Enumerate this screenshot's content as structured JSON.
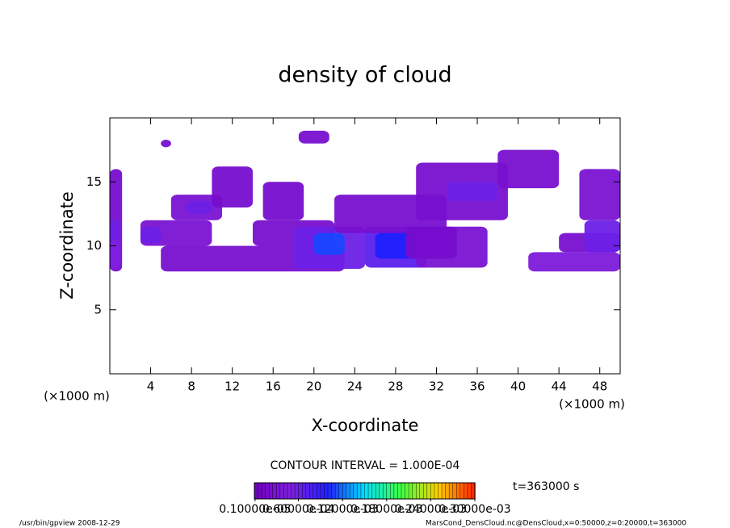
{
  "chart_data": {
    "type": "contour",
    "title": "density of cloud",
    "xlabel": "X-coordinate",
    "ylabel": "Z-coordinate",
    "xunit_left": "(×1000 m)",
    "xunit_right": "(×1000 m)",
    "xlim": [
      0,
      50
    ],
    "ylim": [
      0,
      20
    ],
    "xticks": [
      4,
      8,
      12,
      16,
      20,
      24,
      28,
      32,
      36,
      40,
      44,
      48
    ],
    "yticks": [
      5,
      10,
      15
    ],
    "contour_interval": "CONTOUR INTERVAL = 1.000E-04",
    "time_label": "t=363000 s",
    "clim": [
      0,
      0.0003
    ],
    "colormap": [
      "#7000c0",
      "#8020e0",
      "#2020ff",
      "#00e0ff",
      "#40ff40",
      "#ffd000",
      "#ff2000"
    ],
    "colorbar_ticks": [
      {
        "value": 1e-06,
        "label": "0.10000e-05"
      },
      {
        "value": 6e-05,
        "label": "0.60000e-04"
      },
      {
        "value": 0.00012,
        "label": "0.12000e-03"
      },
      {
        "value": 0.00018,
        "label": "0.18000e-03"
      },
      {
        "value": 0.00024,
        "label": "0.24000e-03"
      },
      {
        "value": 0.0003,
        "label": "0.30000e-03"
      }
    ],
    "patches": [
      [
        0,
        1.2,
        8,
        16,
        2e-05
      ],
      [
        0,
        1,
        9,
        12,
        6e-05
      ],
      [
        3,
        10,
        10,
        12,
        3e-05
      ],
      [
        3,
        5,
        10.2,
        11.5,
        6e-05
      ],
      [
        6,
        11,
        12,
        14,
        3e-05
      ],
      [
        7.5,
        10,
        12.5,
        13.5,
        6e-05
      ],
      [
        10,
        14,
        13,
        16.2,
        2e-05
      ],
      [
        5,
        23,
        8,
        10,
        2.5e-05
      ],
      [
        14,
        22,
        10,
        12,
        2.5e-05
      ],
      [
        15,
        19,
        12,
        15,
        2e-05
      ],
      [
        18,
        25,
        8.2,
        11.5,
        6e-05
      ],
      [
        20,
        23,
        9.3,
        11,
        0.00011
      ],
      [
        25,
        31,
        8.3,
        11.5,
        7e-05
      ],
      [
        26,
        30,
        9,
        11,
        0.0001
      ],
      [
        22,
        33,
        11,
        14,
        2.5e-05
      ],
      [
        30,
        37,
        8.3,
        11.5,
        3e-05
      ],
      [
        30,
        39,
        12,
        16.5,
        2.5e-05
      ],
      [
        33,
        38,
        13.5,
        15,
        6e-05
      ],
      [
        38,
        44,
        14.5,
        17.5,
        2.5e-05
      ],
      [
        41,
        50,
        8,
        9.5,
        4e-05
      ],
      [
        44,
        50,
        9.5,
        11,
        2.5e-05
      ],
      [
        46,
        50,
        12,
        16,
        3e-05
      ],
      [
        46.5,
        50,
        9.5,
        12,
        6e-05
      ],
      [
        18.5,
        21.5,
        18,
        19,
        2.5e-05
      ],
      [
        5,
        6,
        17.7,
        18.3,
        2.5e-05
      ],
      [
        0,
        1,
        8.2,
        10.5,
        5e-05
      ],
      [
        29,
        34,
        9,
        11.5,
        2e-05
      ]
    ],
    "footer_left": "/usr/bin/gpview  2008-12-29",
    "footer_right": "MarsCond_DensCloud.nc@DensCloud,x=0:50000,z=0:20000,t=363000"
  }
}
